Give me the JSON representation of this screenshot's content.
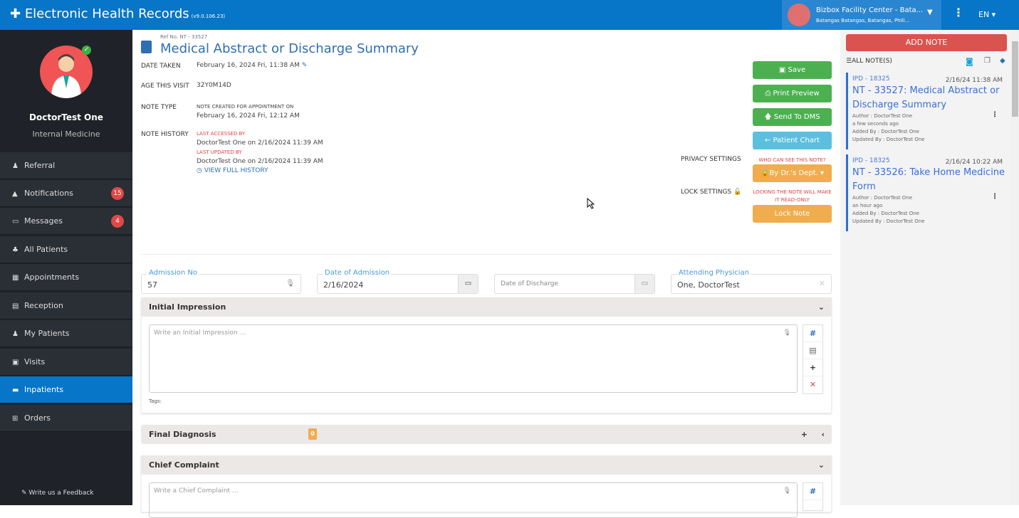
{
  "header": {
    "title": "Electronic Health Records",
    "version": "(v9.0.106.23)",
    "facility_name": "Bizbox Facility Center - Bata...",
    "facility_address": "Batangas Batangas, Batangas, Phili...",
    "language": "EN"
  },
  "user": {
    "name": "DoctorTest One",
    "department": "Internal Medicine"
  },
  "sidebar": {
    "items": [
      {
        "label": "Referral",
        "icon": "user-md-icon"
      },
      {
        "label": "Notifications",
        "icon": "bell-icon",
        "badge": "15"
      },
      {
        "label": "Messages",
        "icon": "inbox-icon",
        "badge": "4"
      },
      {
        "label": "All Patients",
        "icon": "users-icon"
      },
      {
        "label": "Appointments",
        "icon": "calendar-icon"
      },
      {
        "label": "Reception",
        "icon": "list-icon"
      },
      {
        "label": "My Patients",
        "icon": "user-icon"
      },
      {
        "label": "Visits",
        "icon": "hospital-icon"
      },
      {
        "label": "Inpatients",
        "icon": "bed-icon",
        "active": true
      },
      {
        "label": "Orders",
        "icon": "cart-icon"
      }
    ],
    "feedback": "Write us a Feedback"
  },
  "note": {
    "ref": "Ref No. NT - 33527",
    "title": "Medical Abstract or Discharge Summary",
    "date_taken_label": "DATE TAKEN",
    "date_taken": "February 16, 2024 Fri, 11:38 AM",
    "age_label": "AGE THIS VISIT",
    "age": "32Y0M14D",
    "type_label": "NOTE TYPE",
    "type_caption": "NOTE CREATED FOR APPOINTMENT ON",
    "type_date": "February 16, 2024 Fri, 12:12 AM",
    "history_label": "NOTE HISTORY",
    "last_accessed_label": "LAST ACCESSED BY",
    "last_accessed": "DoctorTest One on 2/16/2024 11:39 AM",
    "last_updated_label": "LAST UPDATED BY",
    "last_updated": "DoctorTest One on 2/16/2024 11:39 AM",
    "view_history": "VIEW FULL HISTORY"
  },
  "actions": {
    "save": "Save",
    "print": "Print Preview",
    "send": "Send To DMS",
    "chart": "Patient Chart",
    "privacy_label": "PRIVACY SETTINGS",
    "privacy_note": "WHO CAN SEE THIS NOTE?",
    "privacy_value": "By Dr.'s Dept.",
    "lock_label": "LOCK SETTINGS",
    "lock_note": "LOCKING THE NOTE WILL MAKE IT READ-ONLY",
    "lock_button": "Lock Note"
  },
  "form": {
    "admission_no_label": "Admission No",
    "admission_no": "57",
    "admission_date_label": "Date of Admission",
    "admission_date": "2/16/2024",
    "discharge_placeholder": "Date of Discharge",
    "physician_label": "Attending Physician",
    "physician": "One, DoctorTest"
  },
  "sections": {
    "initial": {
      "title": "Initial Impression",
      "placeholder": "Write an Initial Impression ...",
      "tags": "Tags:"
    },
    "final": {
      "title": "Final Diagnosis",
      "count": "0"
    },
    "chief": {
      "title": "Chief Complaint",
      "placeholder": "Write a Chief Complaint ..."
    }
  },
  "notes_panel": {
    "add": "ADD NOTE",
    "all": "ALL NOTE(S)",
    "items": [
      {
        "ipd": "IPD - 18325",
        "date": "2/16/24 11:38 AM",
        "title": "NT - 33527: Medical Abstract or Discharge Summary",
        "author": "Author : DoctorTest One",
        "ago": "a few seconds ago",
        "added": "Added By : DoctorTest One",
        "updated": "Updated By : DoctorTest One"
      },
      {
        "ipd": "IPD - 18325",
        "date": "2/16/24 10:22 AM",
        "title": "NT - 33526: Take Home Medicine Form",
        "author": "Author : DoctorTest One",
        "ago": "an hour ago",
        "added": "Added By : DoctorTest One",
        "updated": "Updated By : DoctorTest One"
      }
    ]
  },
  "colors": {
    "primary": "#0775c8",
    "success": "#4cb050",
    "info": "#5bc0de",
    "warning": "#f0ad4e",
    "danger": "#d9534f"
  }
}
